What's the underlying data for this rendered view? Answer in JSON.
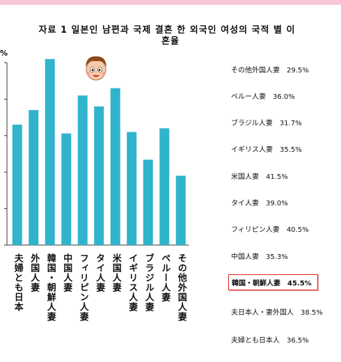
{
  "header": {
    "title_line1": "자료 1 일본인 남편과 국제 결혼 한 외국인 여성의 국적 별 이",
    "title_line2": "혼율",
    "y_unit": "%"
  },
  "face_icon": "cartoon-face-icon",
  "colors": {
    "bar": "#30b4cc",
    "highlight": "#d22222",
    "topbar": "#f7c6d9"
  },
  "chart_data": {
    "type": "bar",
    "title": "자료 1 일본인 남편과 국제 결혼 한 외국인 여성의 국적 별 이혼율",
    "xlabel": "",
    "ylabel": "%",
    "ylim": [
      20,
      45
    ],
    "categories": [
      "夫婦とも日本",
      "外国人妻",
      "韓国・朝鮮人妻",
      "中国人妻",
      "フィリピン人妻",
      "タイ人妻",
      "米国人妻",
      "イギリス人妻",
      "ブラジル人妻",
      "ペルー人妻",
      "その他外国人妻"
    ],
    "values": [
      36.5,
      38.5,
      45.5,
      35.3,
      40.5,
      39.0,
      41.5,
      35.5,
      31.7,
      36.0,
      29.5
    ]
  },
  "legend": [
    {
      "label": "その他外国人妻",
      "value": "29.5%"
    },
    {
      "label": "ペルー人妻",
      "value": "36.0%"
    },
    {
      "label": "ブラジル人妻",
      "value": "31.7%"
    },
    {
      "label": "イギリス人妻",
      "value": "35.5%"
    },
    {
      "label": "米国人妻",
      "value": "41.5%"
    },
    {
      "label": "タイ人妻",
      "value": "39.0%"
    },
    {
      "label": "フィリピン人妻",
      "value": "40.5%"
    },
    {
      "label": "中国人妻",
      "value": "35.3%"
    },
    {
      "label": "韓国・朝鮮人妻",
      "value": "45.5%",
      "highlight": true
    },
    {
      "label": "夫日本人・妻外国人",
      "value": "38.5%"
    },
    {
      "label": "夫婦とも日本人",
      "value": "36.5%"
    }
  ]
}
